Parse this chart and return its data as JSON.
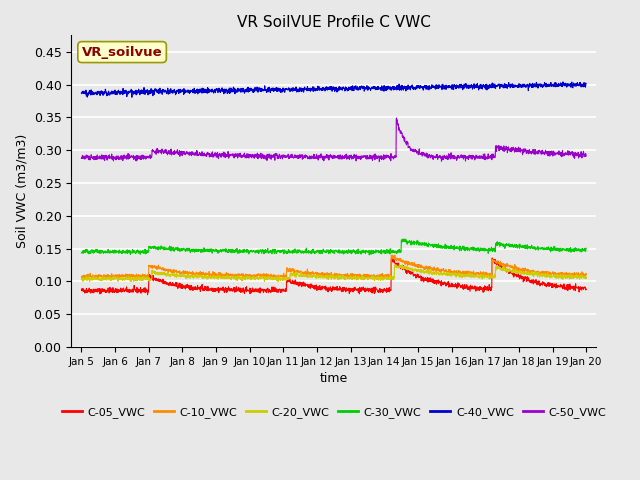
{
  "title": "VR SoilVUE Profile C VWC",
  "xlabel": "time",
  "ylabel": "Soil VWC (m3/m3)",
  "ylim": [
    0.0,
    0.475
  ],
  "yticks": [
    0.0,
    0.05,
    0.1,
    0.15,
    0.2,
    0.25,
    0.3,
    0.35,
    0.4,
    0.45
  ],
  "background_color": "#e8e8e8",
  "plot_bg_color": "#e8e8e8",
  "grid_color": "white",
  "legend_label": "VR_soilvue",
  "legend_box_color": "#ffffcc",
  "legend_text_color": "#8b0000",
  "series": [
    {
      "name": "C-05_VWC",
      "color": "#ff0000",
      "base": 0.086,
      "noise": 0.002,
      "trend": 0.0,
      "events": [
        {
          "day": 2.0,
          "rise": 0.022,
          "decay": 0.8
        },
        {
          "day": 6.1,
          "rise": 0.016,
          "decay": 0.7
        },
        {
          "day": 9.2,
          "rise": 0.048,
          "decay": 1.0
        },
        {
          "day": 12.2,
          "rise": 0.045,
          "decay": 1.0
        }
      ]
    },
    {
      "name": "C-10_VWC",
      "color": "#ff8c00",
      "base": 0.108,
      "noise": 0.0015,
      "trend": 0.0,
      "events": [
        {
          "day": 2.0,
          "rise": 0.016,
          "decay": 1.0
        },
        {
          "day": 6.1,
          "rise": 0.01,
          "decay": 0.8
        },
        {
          "day": 9.2,
          "rise": 0.03,
          "decay": 1.2
        },
        {
          "day": 12.2,
          "rise": 0.022,
          "decay": 1.0
        }
      ]
    },
    {
      "name": "C-20_VWC",
      "color": "#cccc00",
      "base": 0.104,
      "noise": 0.0015,
      "trend": 0.0,
      "events": [
        {
          "day": 2.1,
          "rise": 0.01,
          "decay": 1.2
        },
        {
          "day": 6.2,
          "rise": 0.007,
          "decay": 1.0
        },
        {
          "day": 9.3,
          "rise": 0.02,
          "decay": 1.5
        },
        {
          "day": 12.3,
          "rise": 0.015,
          "decay": 1.2
        }
      ]
    },
    {
      "name": "C-30_VWC",
      "color": "#00cc00",
      "base": 0.145,
      "noise": 0.0015,
      "trend": 0.0,
      "events": [
        {
          "day": 2.0,
          "rise": 0.007,
          "decay": 1.5
        },
        {
          "day": 9.5,
          "rise": 0.018,
          "decay": 1.5
        },
        {
          "day": 12.3,
          "rise": 0.01,
          "decay": 1.5
        }
      ]
    },
    {
      "name": "C-40_VWC",
      "color": "#0000cc",
      "base": 0.387,
      "noise": 0.002,
      "trend": 0.013,
      "events": []
    },
    {
      "name": "C-50_VWC",
      "color": "#9900cc",
      "base": 0.289,
      "noise": 0.002,
      "trend": 0.0,
      "events": [
        {
          "day": 2.1,
          "rise": 0.01,
          "decay": 2.0
        },
        {
          "day": 9.35,
          "rise": 0.06,
          "decay": 0.3
        },
        {
          "day": 12.3,
          "rise": 0.015,
          "decay": 2.0
        }
      ]
    }
  ]
}
